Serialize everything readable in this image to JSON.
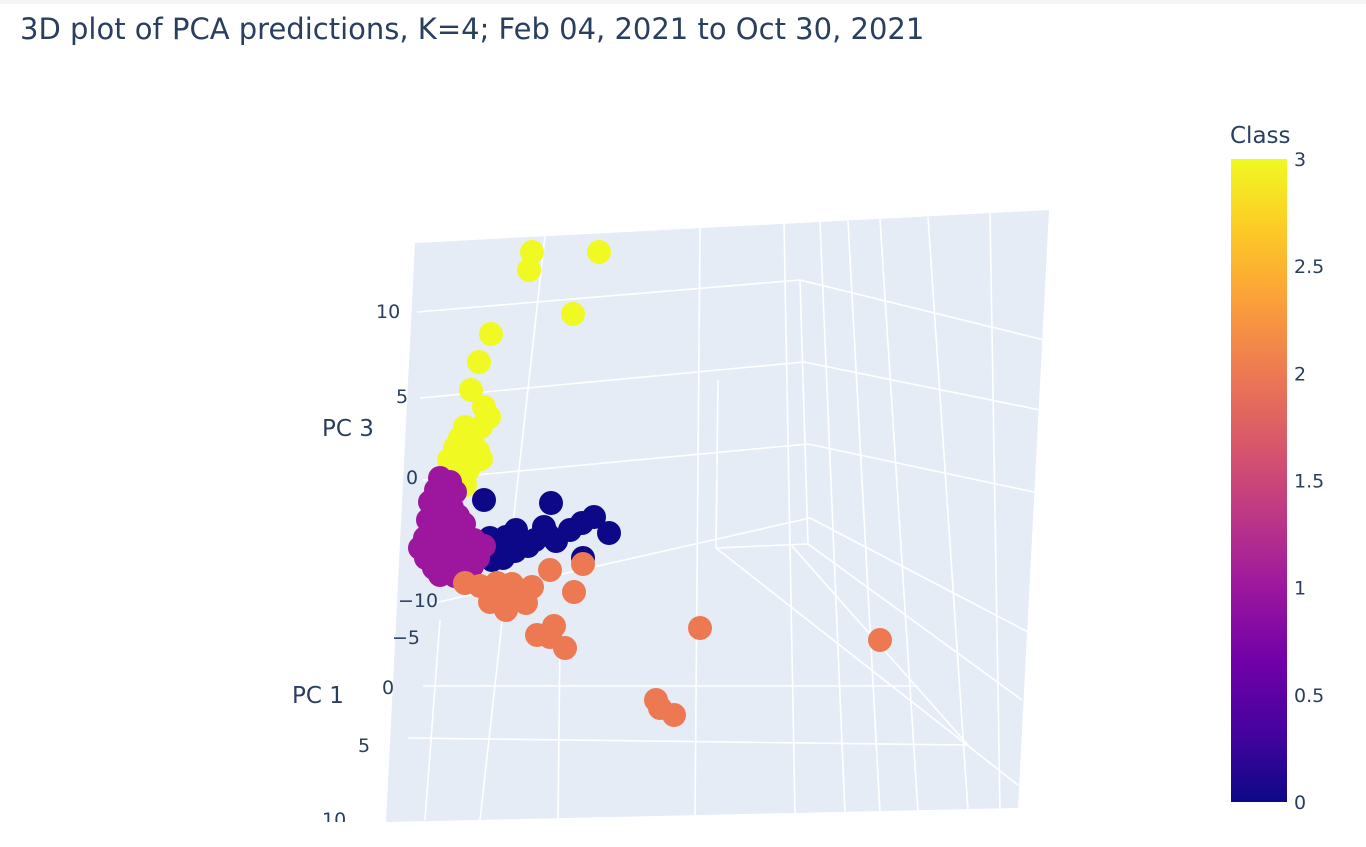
{
  "chart_data": {
    "type": "scatter",
    "title": "3D plot of PCA predictions, K=4; Feb 04, 2021 to Oct 30, 2021",
    "axes": {
      "pc3": {
        "label": "PC 3",
        "ticks": [
          "10",
          "5",
          "0",
          "−10"
        ]
      },
      "pc1": {
        "label": "PC 1",
        "ticks": [
          "−5",
          "0",
          "5",
          "10"
        ]
      }
    },
    "colorbar": {
      "title": "Class",
      "range": [
        0,
        3
      ],
      "ticks": [
        "3",
        "2.5",
        "2",
        "1.5",
        "1",
        "0.5",
        "0"
      ],
      "colors": [
        "#0d0887",
        "#46039f",
        "#7201a8",
        "#9c179e",
        "#bd3786",
        "#d8576b",
        "#ed7953",
        "#fb9f3a",
        "#fdca26",
        "#f0f921"
      ]
    },
    "class_colors": {
      "0": "#0d0887",
      "1": "#9c179e",
      "2": "#ed7953",
      "3": "#f0f921"
    },
    "series": [
      {
        "class": 3,
        "points": [
          [
            532,
            252
          ],
          [
            599,
            252
          ],
          [
            529,
            270
          ],
          [
            573,
            314
          ],
          [
            491,
            334
          ],
          [
            479,
            362
          ],
          [
            471,
            390
          ],
          [
            484,
            407
          ],
          [
            489,
            417
          ],
          [
            465,
            427
          ],
          [
            481,
            427
          ],
          [
            460,
            438
          ],
          [
            472,
            440
          ],
          [
            455,
            448
          ],
          [
            478,
            451
          ],
          [
            467,
            456
          ],
          [
            449,
            460
          ],
          [
            462,
            462
          ],
          [
            481,
            459
          ],
          [
            454,
            468
          ],
          [
            468,
            470
          ],
          [
            448,
            474
          ],
          [
            465,
            485
          ]
        ]
      },
      {
        "class": 0,
        "points": [
          [
            551,
            503
          ],
          [
            484,
            500
          ],
          [
            594,
            517
          ],
          [
            609,
            533
          ],
          [
            582,
            523
          ],
          [
            570,
            530
          ],
          [
            544,
            527
          ],
          [
            516,
            530
          ],
          [
            490,
            538
          ],
          [
            506,
            537
          ],
          [
            522,
            542
          ],
          [
            535,
            540
          ],
          [
            548,
            535
          ],
          [
            477,
            542
          ],
          [
            497,
            548
          ],
          [
            528,
            546
          ],
          [
            556,
            541
          ],
          [
            583,
            558
          ],
          [
            515,
            551
          ],
          [
            476,
            555
          ],
          [
            492,
            560
          ],
          [
            503,
            558
          ]
        ]
      },
      {
        "class": 1,
        "points": [
          [
            440,
            478
          ],
          [
            450,
            482
          ],
          [
            436,
            490
          ],
          [
            445,
            494
          ],
          [
            455,
            492
          ],
          [
            430,
            502
          ],
          [
            442,
            505
          ],
          [
            452,
            508
          ],
          [
            438,
            514
          ],
          [
            428,
            520
          ],
          [
            446,
            520
          ],
          [
            458,
            516
          ],
          [
            432,
            528
          ],
          [
            444,
            530
          ],
          [
            456,
            528
          ],
          [
            464,
            524
          ],
          [
            425,
            538
          ],
          [
            436,
            540
          ],
          [
            450,
            540
          ],
          [
            462,
            536
          ],
          [
            474,
            540
          ],
          [
            420,
            548
          ],
          [
            432,
            550
          ],
          [
            444,
            552
          ],
          [
            456,
            550
          ],
          [
            470,
            548
          ],
          [
            484,
            546
          ],
          [
            426,
            558
          ],
          [
            440,
            560
          ],
          [
            452,
            562
          ],
          [
            466,
            560
          ],
          [
            478,
            558
          ],
          [
            434,
            568
          ],
          [
            448,
            570
          ],
          [
            460,
            568
          ],
          [
            472,
            566
          ],
          [
            440,
            575
          ],
          [
            455,
            576
          ]
        ]
      },
      {
        "class": 2,
        "points": [
          [
            550,
            570
          ],
          [
            583,
            564
          ],
          [
            465,
            583
          ],
          [
            480,
            586
          ],
          [
            497,
            583
          ],
          [
            512,
            584
          ],
          [
            532,
            587
          ],
          [
            574,
            592
          ],
          [
            500,
            597
          ],
          [
            520,
            600
          ],
          [
            490,
            602
          ],
          [
            506,
            610
          ],
          [
            526,
            603
          ],
          [
            554,
            626
          ],
          [
            537,
            635
          ],
          [
            550,
            637
          ],
          [
            565,
            648
          ],
          [
            700,
            628
          ],
          [
            880,
            640
          ],
          [
            656,
            700
          ],
          [
            660,
            708
          ],
          [
            674,
            715
          ]
        ]
      }
    ]
  }
}
